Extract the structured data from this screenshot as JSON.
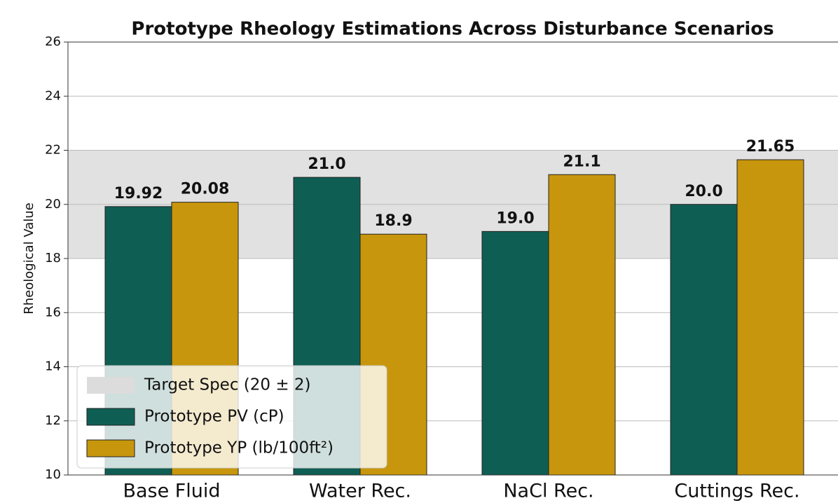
{
  "chart_data": {
    "type": "bar",
    "title": "Prototype Rheology Estimations Across Disturbance Scenarios",
    "ylabel": "Rheological Value",
    "categories": [
      "Base Fluid",
      "Water Rec.",
      "NaCl Rec.",
      "Cuttings Rec."
    ],
    "series": [
      {
        "name": "Prototype PV (cP)",
        "color": "#0f5e54",
        "values": [
          19.92,
          21.0,
          19.0,
          20.0
        ],
        "value_labels": [
          "19.92",
          "21.0",
          "19.0",
          "20.0"
        ]
      },
      {
        "name": "Prototype YP (lb/100ft²)",
        "color": "#c8960c",
        "values": [
          20.08,
          18.9,
          21.1,
          21.65
        ],
        "value_labels": [
          "20.08",
          "18.9",
          "21.1",
          "21.65"
        ]
      }
    ],
    "band": {
      "name": "Target Spec (20 ± 2)",
      "from": 18,
      "to": 22,
      "color": "#dcdcdc"
    },
    "ylim": [
      10,
      26
    ],
    "yticks": [
      10,
      12,
      14,
      16,
      18,
      20,
      22,
      24,
      26
    ],
    "grid": true,
    "legend": "lower left"
  }
}
